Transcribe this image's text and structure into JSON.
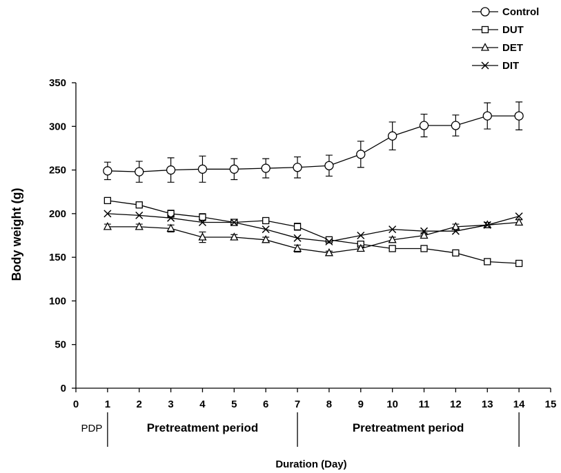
{
  "chart_data": {
    "type": "line",
    "ylabel": "Body weight (g)",
    "xlabel": "Duration (Day)",
    "xlim": [
      0,
      15
    ],
    "ylim": [
      0,
      350
    ],
    "x_ticks": [
      0,
      1,
      2,
      3,
      4,
      5,
      6,
      7,
      8,
      9,
      10,
      11,
      12,
      13,
      14,
      15
    ],
    "y_ticks": [
      0,
      50,
      100,
      150,
      200,
      250,
      300,
      350
    ],
    "grid": false,
    "legend": {
      "position": "top-right"
    },
    "x": [
      1,
      2,
      3,
      4,
      5,
      6,
      7,
      8,
      9,
      10,
      11,
      12,
      13,
      14
    ],
    "series": [
      {
        "name": "Control",
        "marker": "circle",
        "values": [
          249,
          248,
          250,
          251,
          251,
          252,
          253,
          255,
          268,
          289,
          301,
          301,
          312,
          312
        ],
        "errors": [
          10,
          12,
          14,
          15,
          12,
          11,
          12,
          12,
          15,
          16,
          13,
          12,
          15,
          16
        ]
      },
      {
        "name": "DUT",
        "marker": "square",
        "values": [
          215,
          210,
          200,
          196,
          190,
          192,
          185,
          170,
          165,
          160,
          160,
          155,
          145,
          143
        ],
        "errors": [
          2,
          2,
          4,
          4,
          2,
          2,
          4,
          2,
          2,
          2,
          2,
          2,
          3,
          2
        ]
      },
      {
        "name": "DET",
        "marker": "triangle",
        "values": [
          185,
          185,
          183,
          173,
          173,
          170,
          160,
          155,
          160,
          170,
          175,
          185,
          187,
          190
        ],
        "errors": [
          3,
          3,
          4,
          6,
          3,
          3,
          4,
          2,
          3,
          3,
          3,
          3,
          3,
          3
        ]
      },
      {
        "name": "DIT",
        "marker": "x",
        "values": [
          200,
          198,
          195,
          190,
          190,
          182,
          172,
          168,
          175,
          182,
          180,
          180,
          187,
          197
        ],
        "errors": [
          0,
          0,
          0,
          0,
          0,
          0,
          0,
          0,
          0,
          0,
          0,
          0,
          0,
          0
        ]
      }
    ],
    "annotations": [
      {
        "text": "PDP",
        "x_from": 0,
        "x_to": 1
      },
      {
        "text": "Pretreatment period",
        "x_from": 1,
        "x_to": 7
      },
      {
        "text": "Pretreatment period",
        "x_from": 7,
        "x_to": 14
      }
    ]
  }
}
